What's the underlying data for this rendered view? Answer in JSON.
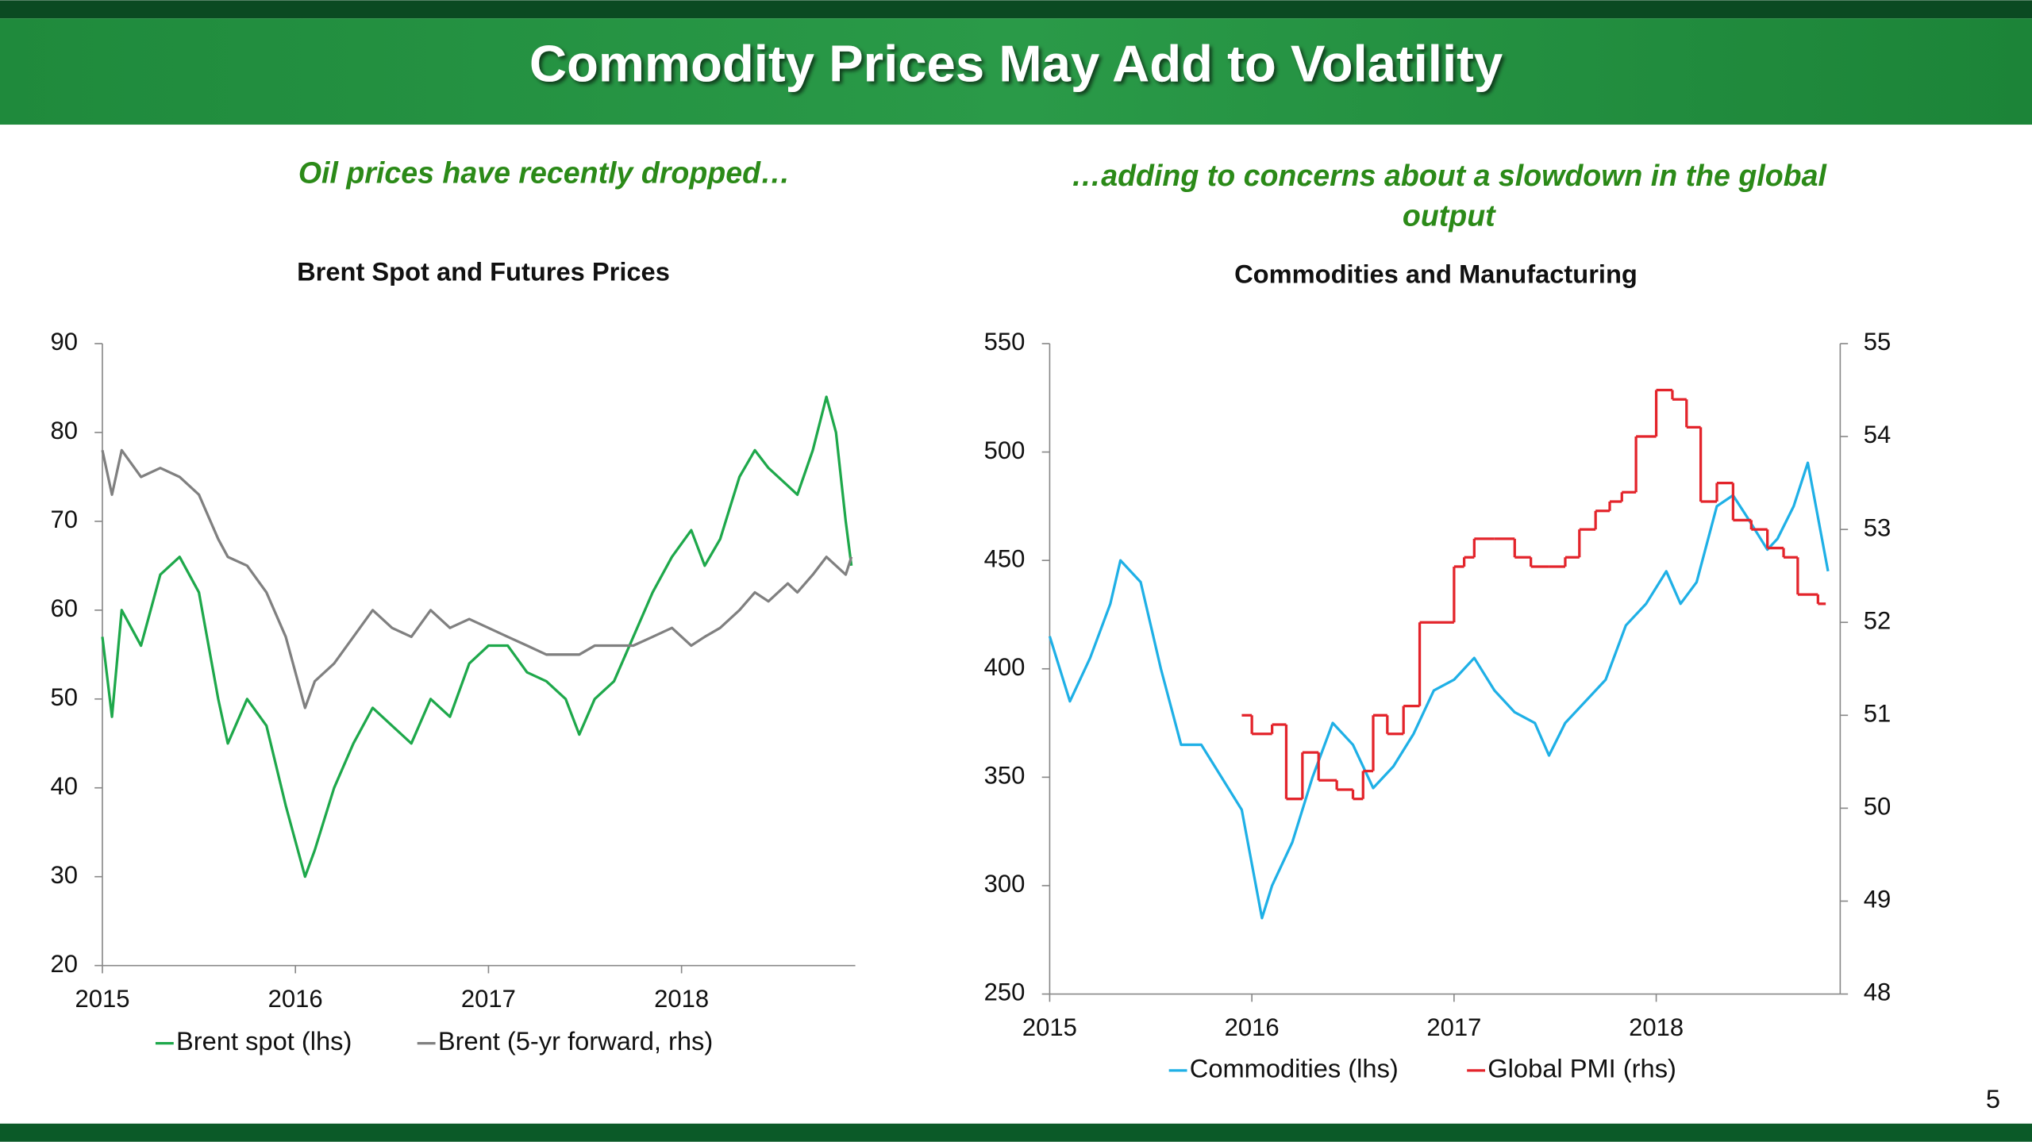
{
  "header": {
    "title": "Commodity Prices May Add to Volatility"
  },
  "page_number": "5",
  "chart_data": [
    {
      "type": "line",
      "subtitle": "Oil prices have recently dropped…",
      "title": "Brent Spot and Futures Prices",
      "xlim": [
        2015,
        2018.9
      ],
      "xticks": [
        2015,
        2016,
        2017,
        2018
      ],
      "ylim": [
        20,
        90
      ],
      "yticks": [
        20,
        30,
        40,
        50,
        60,
        70,
        80,
        90
      ],
      "series": [
        {
          "name": "Brent spot (lhs)",
          "color": "#1ea84b",
          "x": [
            2015.0,
            2015.05,
            2015.1,
            2015.2,
            2015.3,
            2015.4,
            2015.5,
            2015.6,
            2015.65,
            2015.75,
            2015.85,
            2015.95,
            2016.05,
            2016.1,
            2016.2,
            2016.3,
            2016.4,
            2016.5,
            2016.6,
            2016.7,
            2016.8,
            2016.9,
            2017.0,
            2017.1,
            2017.2,
            2017.3,
            2017.4,
            2017.47,
            2017.55,
            2017.65,
            2017.75,
            2017.85,
            2017.95,
            2018.05,
            2018.12,
            2018.2,
            2018.3,
            2018.38,
            2018.45,
            2018.55,
            2018.6,
            2018.68,
            2018.75,
            2018.8,
            2018.85,
            2018.88
          ],
          "values": [
            57,
            48,
            60,
            56,
            64,
            66,
            62,
            50,
            45,
            50,
            47,
            38,
            30,
            33,
            40,
            45,
            49,
            47,
            45,
            50,
            48,
            54,
            56,
            56,
            53,
            52,
            50,
            46,
            50,
            52,
            57,
            62,
            66,
            69,
            65,
            68,
            75,
            78,
            76,
            74,
            73,
            78,
            84,
            80,
            70,
            65
          ]
        },
        {
          "name": "Brent (5-yr forward, rhs)",
          "color": "#808080",
          "x": [
            2015.0,
            2015.05,
            2015.1,
            2015.2,
            2015.3,
            2015.4,
            2015.5,
            2015.6,
            2015.65,
            2015.75,
            2015.85,
            2015.95,
            2016.05,
            2016.1,
            2016.2,
            2016.3,
            2016.4,
            2016.5,
            2016.6,
            2016.7,
            2016.8,
            2016.9,
            2017.0,
            2017.1,
            2017.2,
            2017.3,
            2017.4,
            2017.47,
            2017.55,
            2017.65,
            2017.75,
            2017.85,
            2017.95,
            2018.05,
            2018.12,
            2018.2,
            2018.3,
            2018.38,
            2018.45,
            2018.55,
            2018.6,
            2018.68,
            2018.75,
            2018.8,
            2018.85,
            2018.88
          ],
          "values": [
            78,
            73,
            78,
            75,
            76,
            75,
            73,
            68,
            66,
            65,
            62,
            57,
            49,
            52,
            54,
            57,
            60,
            58,
            57,
            60,
            58,
            59,
            58,
            57,
            56,
            55,
            55,
            55,
            56,
            56,
            56,
            57,
            58,
            56,
            57,
            58,
            60,
            62,
            61,
            63,
            62,
            64,
            66,
            65,
            64,
            66
          ]
        }
      ]
    },
    {
      "type": "line",
      "subtitle": "…adding to concerns about a slowdown in the global output",
      "title": "Commodities and Manufacturing",
      "xlim": [
        2015,
        2018.91
      ],
      "xticks": [
        2015,
        2016,
        2017,
        2018
      ],
      "ylim": [
        250,
        550
      ],
      "yticks": [
        250,
        300,
        350,
        400,
        450,
        500,
        550
      ],
      "y2lim": [
        48,
        55
      ],
      "y2ticks": [
        48,
        49,
        50,
        51,
        52,
        53,
        54,
        55
      ],
      "series": [
        {
          "name": "Commodities (lhs)",
          "color": "#1fb0e6",
          "x": [
            2015.0,
            2015.1,
            2015.2,
            2015.3,
            2015.35,
            2015.45,
            2015.55,
            2015.65,
            2015.75,
            2015.85,
            2015.95,
            2016.05,
            2016.1,
            2016.2,
            2016.3,
            2016.4,
            2016.5,
            2016.6,
            2016.7,
            2016.8,
            2016.9,
            2017.0,
            2017.1,
            2017.2,
            2017.3,
            2017.4,
            2017.47,
            2017.55,
            2017.65,
            2017.75,
            2017.85,
            2017.95,
            2018.05,
            2018.12,
            2018.2,
            2018.3,
            2018.38,
            2018.45,
            2018.55,
            2018.6,
            2018.68,
            2018.75,
            2018.8,
            2018.85
          ],
          "values": [
            415,
            385,
            405,
            430,
            450,
            440,
            400,
            365,
            365,
            350,
            335,
            285,
            300,
            320,
            350,
            375,
            365,
            345,
            355,
            370,
            390,
            395,
            405,
            390,
            380,
            375,
            360,
            375,
            385,
            395,
            420,
            430,
            445,
            430,
            440,
            475,
            480,
            470,
            455,
            460,
            475,
            495,
            470,
            445
          ]
        },
        {
          "name": "Global PMI (rhs)",
          "color": "#e3242b",
          "axis": "y2",
          "drawstyle": "steps-post",
          "x": [
            2015.95,
            2016.0,
            2016.1,
            2016.17,
            2016.25,
            2016.33,
            2016.42,
            2016.5,
            2016.55,
            2016.6,
            2016.67,
            2016.75,
            2016.83,
            2016.92,
            2017.0,
            2017.05,
            2017.1,
            2017.2,
            2017.3,
            2017.38,
            2017.47,
            2017.55,
            2017.62,
            2017.7,
            2017.77,
            2017.83,
            2017.9,
            2018.0,
            2018.08,
            2018.15,
            2018.22,
            2018.3,
            2018.38,
            2018.47,
            2018.55,
            2018.63,
            2018.7,
            2018.8
          ],
          "values": [
            51.0,
            50.8,
            50.9,
            50.1,
            50.6,
            50.3,
            50.2,
            50.1,
            50.4,
            51.0,
            50.8,
            51.1,
            52.0,
            52.0,
            52.6,
            52.7,
            52.9,
            52.9,
            52.7,
            52.6,
            52.6,
            52.7,
            53.0,
            53.2,
            53.3,
            53.4,
            54.0,
            54.5,
            54.4,
            54.1,
            53.3,
            53.5,
            53.1,
            53.0,
            52.8,
            52.7,
            52.3,
            52.2
          ]
        }
      ]
    }
  ]
}
